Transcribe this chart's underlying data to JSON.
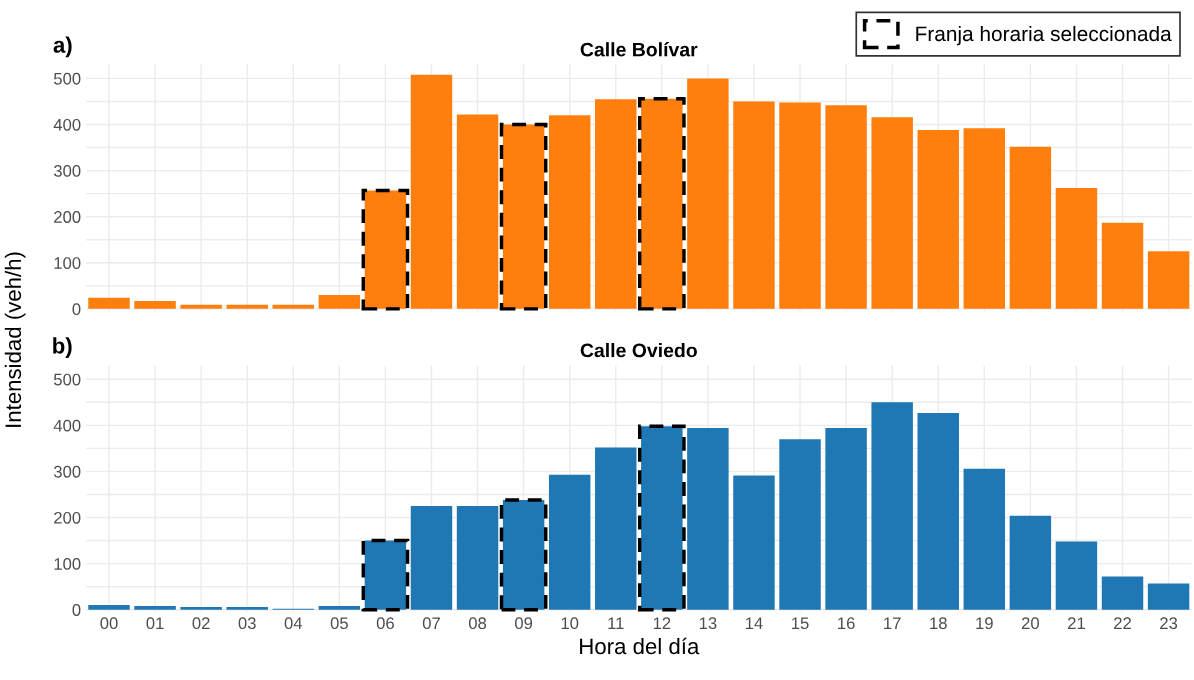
{
  "chart_data": [
    {
      "type": "bar",
      "title": "Calle Bolívar",
      "ylabel": "Intensidad (veh/h)",
      "categories": [
        "00",
        "01",
        "02",
        "03",
        "04",
        "05",
        "06",
        "07",
        "08",
        "09",
        "10",
        "11",
        "12",
        "13",
        "14",
        "15",
        "16",
        "17",
        "18",
        "19",
        "20",
        "21",
        "22",
        "23"
      ],
      "series": [
        {
          "color": "#ff7f0e",
          "values": [
            24,
            17,
            9,
            9,
            9,
            30,
            257,
            508,
            422,
            400,
            420,
            455,
            456,
            500,
            450,
            448,
            442,
            416,
            388,
            392,
            352,
            262,
            187,
            125
          ]
        },
        {
          "name": "Franja horaria seleccionada",
          "color": "#000000",
          "line_style": "dashed",
          "values": [
            null,
            null,
            null,
            null,
            null,
            null,
            257,
            null,
            null,
            400,
            null,
            null,
            456,
            null,
            null,
            null,
            null,
            null,
            null,
            null,
            null,
            null,
            null,
            null
          ]
        }
      ],
      "ylim": [
        -5,
        530
      ],
      "yticks": [
        0,
        {
          "value": 50,
          "label": null
        },
        100,
        {
          "value": 150,
          "label": null
        },
        200,
        {
          "value": 250,
          "label": null
        },
        300,
        {
          "value": 350,
          "label": null
        },
        400,
        {
          "value": 450,
          "label": null
        },
        500
      ],
      "grid": true,
      "legend": "top right",
      "tick_labels": "y",
      "annotations": [
        "a)"
      ]
    },
    {
      "type": "bar",
      "title": "Calle Oviedo",
      "xlabel": "Hora del día",
      "categories": [
        "00",
        "01",
        "02",
        "03",
        "04",
        "05",
        "06",
        "07",
        "08",
        "09",
        "10",
        "11",
        "12",
        "13",
        "14",
        "15",
        "16",
        "17",
        "18",
        "19",
        "20",
        "21",
        "22",
        "23"
      ],
      "series": [
        {
          "color": "#1f77b4",
          "values": [
            10,
            8,
            6,
            6,
            2,
            8,
            150,
            225,
            225,
            238,
            293,
            352,
            398,
            394,
            291,
            370,
            394,
            450,
            427,
            306,
            204,
            148,
            72,
            57
          ]
        },
        {
          "color": "#000000",
          "line_style": "dashed",
          "values": [
            null,
            null,
            null,
            null,
            null,
            null,
            150,
            null,
            null,
            238,
            null,
            null,
            398,
            null,
            null,
            null,
            null,
            null,
            null,
            null,
            null,
            null,
            null,
            null
          ]
        }
      ],
      "ylim": [
        -5,
        530
      ],
      "yticks": [
        0,
        {
          "value": 50,
          "label": null
        },
        100,
        {
          "value": 150,
          "label": null
        },
        200,
        {
          "value": 250,
          "label": null
        },
        300,
        {
          "value": 350,
          "label": null
        },
        400,
        {
          "value": 450,
          "label": null
        },
        500
      ],
      "grid": true,
      "annotations": [
        "b)"
      ]
    }
  ]
}
